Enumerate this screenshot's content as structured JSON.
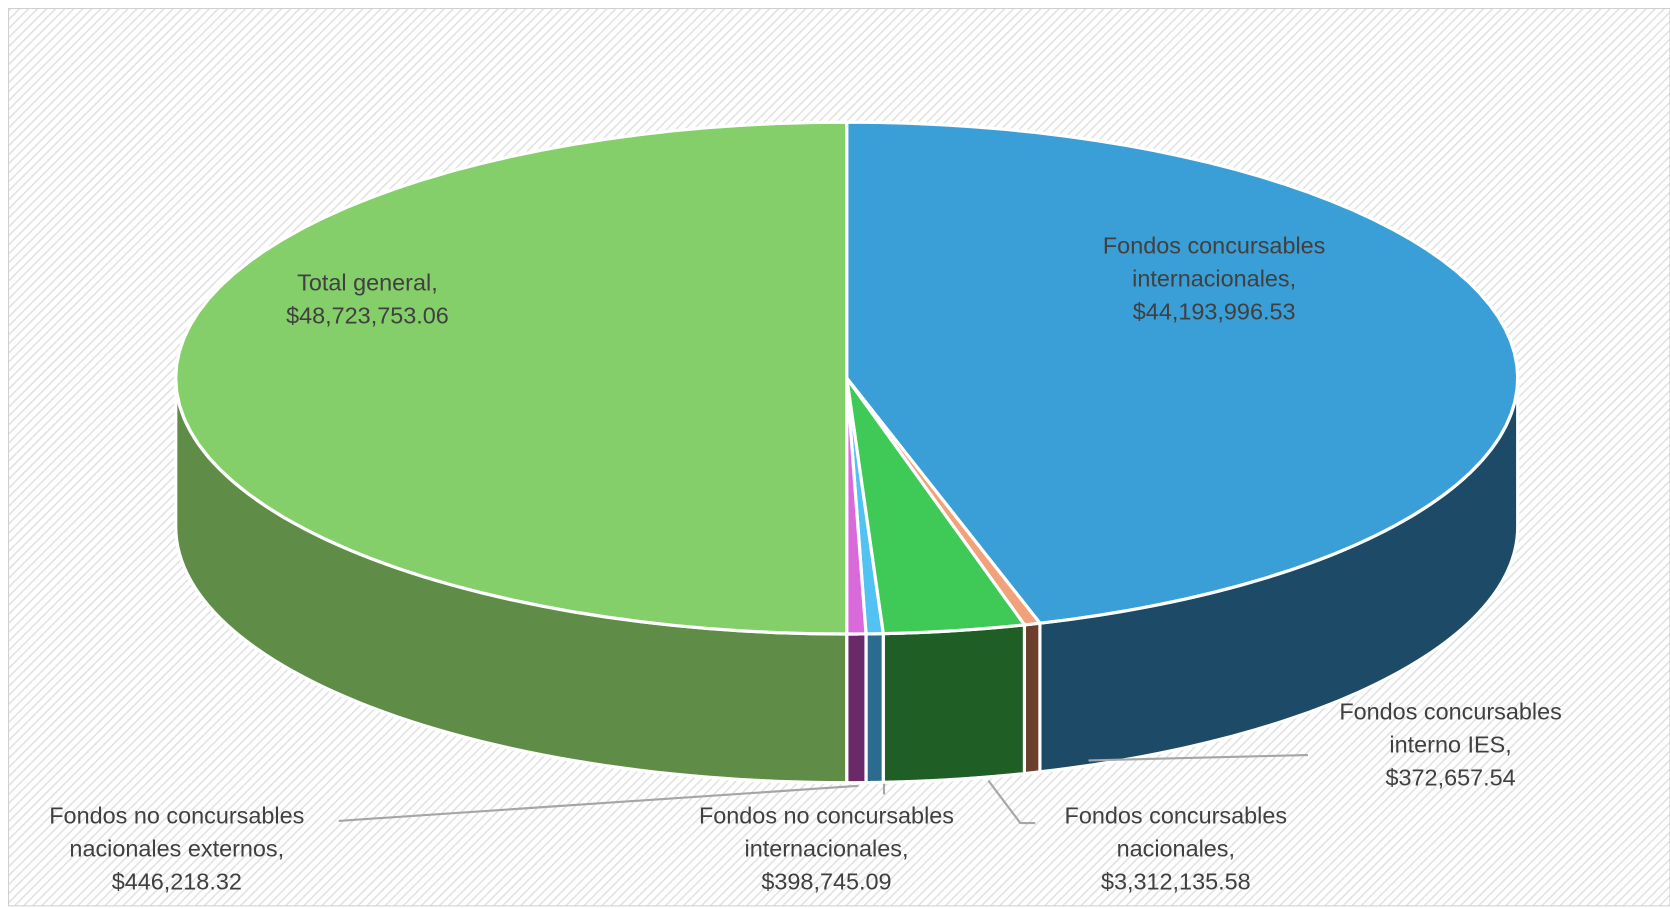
{
  "chart_data": {
    "type": "pie3d",
    "categories": [
      "Fondos concursables internacionales,",
      "Fondos concursables interno IES,",
      "Fondos concursables nacionales,",
      "Fondos no concursables internacionales,",
      "Fondos no concursables nacionales externos,",
      "Total general,"
    ],
    "values": [
      44193996.53,
      372657.54,
      3312135.58,
      398745.09,
      446218.32,
      48723753.06
    ],
    "value_labels": [
      "$44,193,996.53",
      "$372,657.54",
      "$3,312,135.58",
      "$398,745.09",
      "$446,218.32",
      "$48,723,753.06"
    ],
    "colors": [
      "#3a9fd6",
      "#f2a27a",
      "#3fc956",
      "#52c2f2",
      "#d96ad9",
      "#84cf6a"
    ],
    "side_colors": [
      "#1d4a66",
      "#6b3f2c",
      "#1f5e25",
      "#2b6b8f",
      "#6a2a6a",
      "#5f8d47"
    ]
  }
}
